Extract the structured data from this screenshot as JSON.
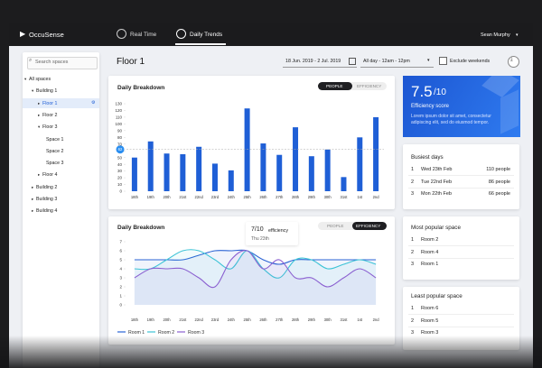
{
  "header": {
    "logo": "OccuSense",
    "tabs": [
      "Real Time",
      "Daily Trends"
    ],
    "user": "Sean Murphy"
  },
  "sidebar": {
    "search_placeholder": "Search spaces",
    "tree": {
      "label": "All spaces",
      "children": [
        {
          "label": "Building 1",
          "children": [
            {
              "label": "Floor 1"
            },
            {
              "label": "Floor 2"
            },
            {
              "label": "Floor 3",
              "children": [
                {
                  "label": "Space 1"
                },
                {
                  "label": "Space 2"
                },
                {
                  "label": "Space 3"
                }
              ]
            },
            {
              "label": "Floor 4"
            }
          ]
        },
        {
          "label": "Building 2"
        },
        {
          "label": "Building 3"
        },
        {
          "label": "Building 4"
        }
      ]
    }
  },
  "toolbar": {
    "title": "Floor 1",
    "date_range": "18 Jun. 2019 - 2 Jul. 2019",
    "time_range": "All day - 12am - 12pm",
    "exclude_weekends": "Exclude weekends"
  },
  "chart_data": [
    {
      "type": "bar",
      "title": "Daily Breakdown",
      "toggle": [
        "PEOPLE",
        "EFFICIENCY"
      ],
      "categories": [
        "18th",
        "19th",
        "20th",
        "21st",
        "22nd",
        "23rd",
        "24th",
        "25th",
        "26th",
        "27th",
        "28th",
        "29th",
        "30th",
        "31st",
        "1st",
        "2nd"
      ],
      "values": [
        50,
        74,
        56,
        55,
        66,
        41,
        31,
        123,
        71,
        54,
        95,
        52,
        62,
        21,
        80,
        110
      ],
      "color": "#1f5fd6",
      "reference_line": 62,
      "ylim": [
        0,
        130
      ],
      "yticks": [
        0,
        10,
        20,
        30,
        40,
        50,
        60,
        70,
        80,
        90,
        100,
        110,
        120,
        130
      ]
    },
    {
      "type": "line",
      "title": "Daily Breakdown",
      "toggle": [
        "PEOPLE",
        "EFFICIENCY"
      ],
      "categories": [
        "18th",
        "19th",
        "20th",
        "21st",
        "22nd",
        "23rd",
        "24th",
        "25th",
        "26th",
        "27th",
        "28th",
        "29th",
        "30th",
        "31st",
        "1st",
        "2nd"
      ],
      "series": [
        {
          "name": "Room 1",
          "color": "#2a63d4",
          "values": [
            5,
            5,
            5,
            5,
            5.5,
            6,
            6,
            6,
            5,
            4.5,
            5,
            5,
            5,
            5,
            5,
            5
          ]
        },
        {
          "name": "Room 2",
          "color": "#3cc3d6",
          "values": [
            4,
            4,
            5,
            6,
            6,
            5,
            4,
            6,
            4,
            3,
            5,
            5,
            4,
            4.5,
            5,
            4.5
          ]
        },
        {
          "name": "Room 3",
          "color": "#8a5fd0",
          "values": [
            3,
            4,
            4,
            4,
            3,
            2,
            5,
            6,
            4,
            5,
            3,
            3,
            2,
            3,
            4,
            3
          ]
        }
      ],
      "tooltip": {
        "value": "7/10",
        "text": "efficiency",
        "date": "Thu 23th"
      },
      "ylim": [
        0,
        7
      ],
      "yticks": [
        0,
        1,
        2,
        3,
        4,
        5,
        6,
        7
      ]
    }
  ],
  "score_card": {
    "score": "7.5",
    "scale": "/10",
    "label": "Efficiency score",
    "text": "Lorem ipsum dolor sit amet, consectetur adipiscing elit, sed do eiusmod tempor."
  },
  "busiest_days": {
    "title": "Busiest days",
    "rows": [
      [
        "1",
        "Wed 23th Feb",
        "110 people"
      ],
      [
        "2",
        "Tue 22nd Feb",
        "86 people"
      ],
      [
        "3",
        "Mon 22th Feb",
        "66 people"
      ]
    ]
  },
  "most_popular": {
    "title": "Most popular space",
    "rows": [
      [
        "1",
        "Room 2"
      ],
      [
        "2",
        "Room 4"
      ],
      [
        "3",
        "Room 1"
      ]
    ]
  },
  "least_popular": {
    "title": "Least popular space",
    "rows": [
      [
        "1",
        "Room 6"
      ],
      [
        "2",
        "Room 5"
      ],
      [
        "3",
        "Room 3"
      ]
    ]
  }
}
